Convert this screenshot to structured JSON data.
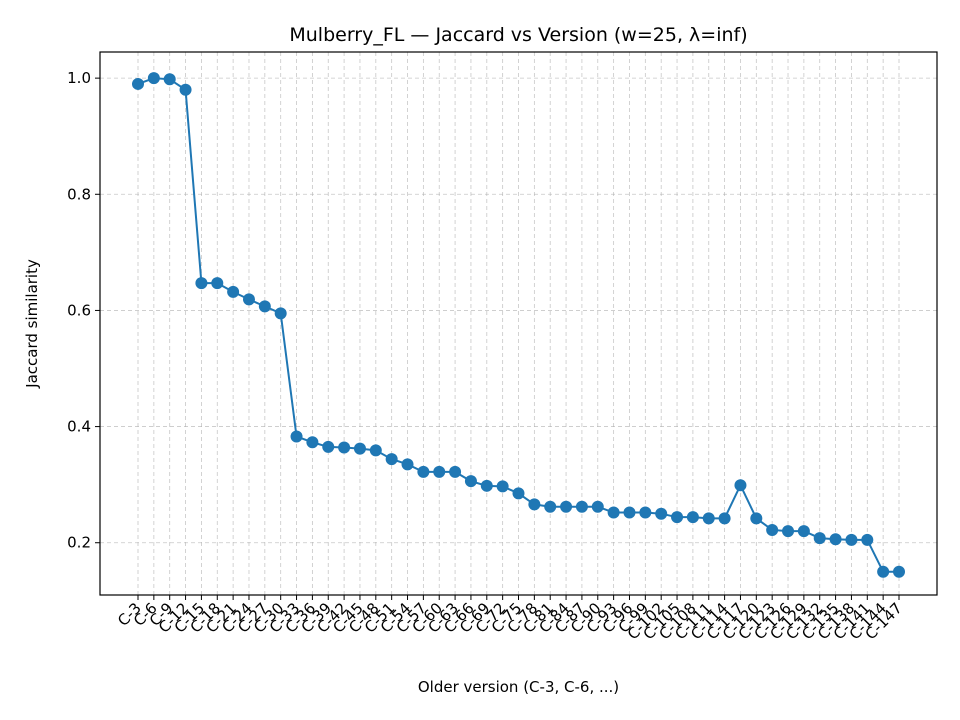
{
  "chart_data": {
    "type": "line",
    "title": "Mulberry_FL — Jaccard vs Version (w=25, λ=inf)",
    "xlabel": "Older version (C-3, C-6, ...)",
    "ylabel": "Jaccard similarity",
    "ylim": [
      0.11,
      1.045
    ],
    "yticks": [
      0.2,
      0.4,
      0.6,
      0.8,
      1.0
    ],
    "ytick_labels": [
      "0.2",
      "0.4",
      "0.6",
      "0.8",
      "1.0"
    ],
    "grid": true,
    "color": "#1f77b4",
    "categories": [
      "C-3",
      "C-6",
      "C-9",
      "C-12",
      "C-15",
      "C-18",
      "C-21",
      "C-24",
      "C-27",
      "C-30",
      "C-33",
      "C-36",
      "C-39",
      "C-42",
      "C-45",
      "C-48",
      "C-51",
      "C-54",
      "C-57",
      "C-60",
      "C-63",
      "C-66",
      "C-69",
      "C-72",
      "C-75",
      "C-78",
      "C-81",
      "C-84",
      "C-87",
      "C-90",
      "C-93",
      "C-96",
      "C-99",
      "C-102",
      "C-105",
      "C-108",
      "C-111",
      "C-114",
      "C-117",
      "C-120",
      "C-123",
      "C-126",
      "C-129",
      "C-132",
      "C-135",
      "C-138",
      "C-141",
      "C-144",
      "C-147"
    ],
    "values": [
      0.99,
      1.0,
      0.998,
      0.98,
      0.647,
      0.647,
      0.632,
      0.619,
      0.607,
      0.595,
      0.383,
      0.373,
      0.365,
      0.364,
      0.362,
      0.359,
      0.344,
      0.335,
      0.322,
      0.322,
      0.322,
      0.306,
      0.298,
      0.297,
      0.285,
      0.266,
      0.262,
      0.262,
      0.262,
      0.262,
      0.252,
      0.252,
      0.252,
      0.25,
      0.244,
      0.244,
      0.242,
      0.242,
      0.299,
      0.242,
      0.222,
      0.22,
      0.22,
      0.208,
      0.206,
      0.205,
      0.205,
      0.15,
      0.15
    ]
  }
}
